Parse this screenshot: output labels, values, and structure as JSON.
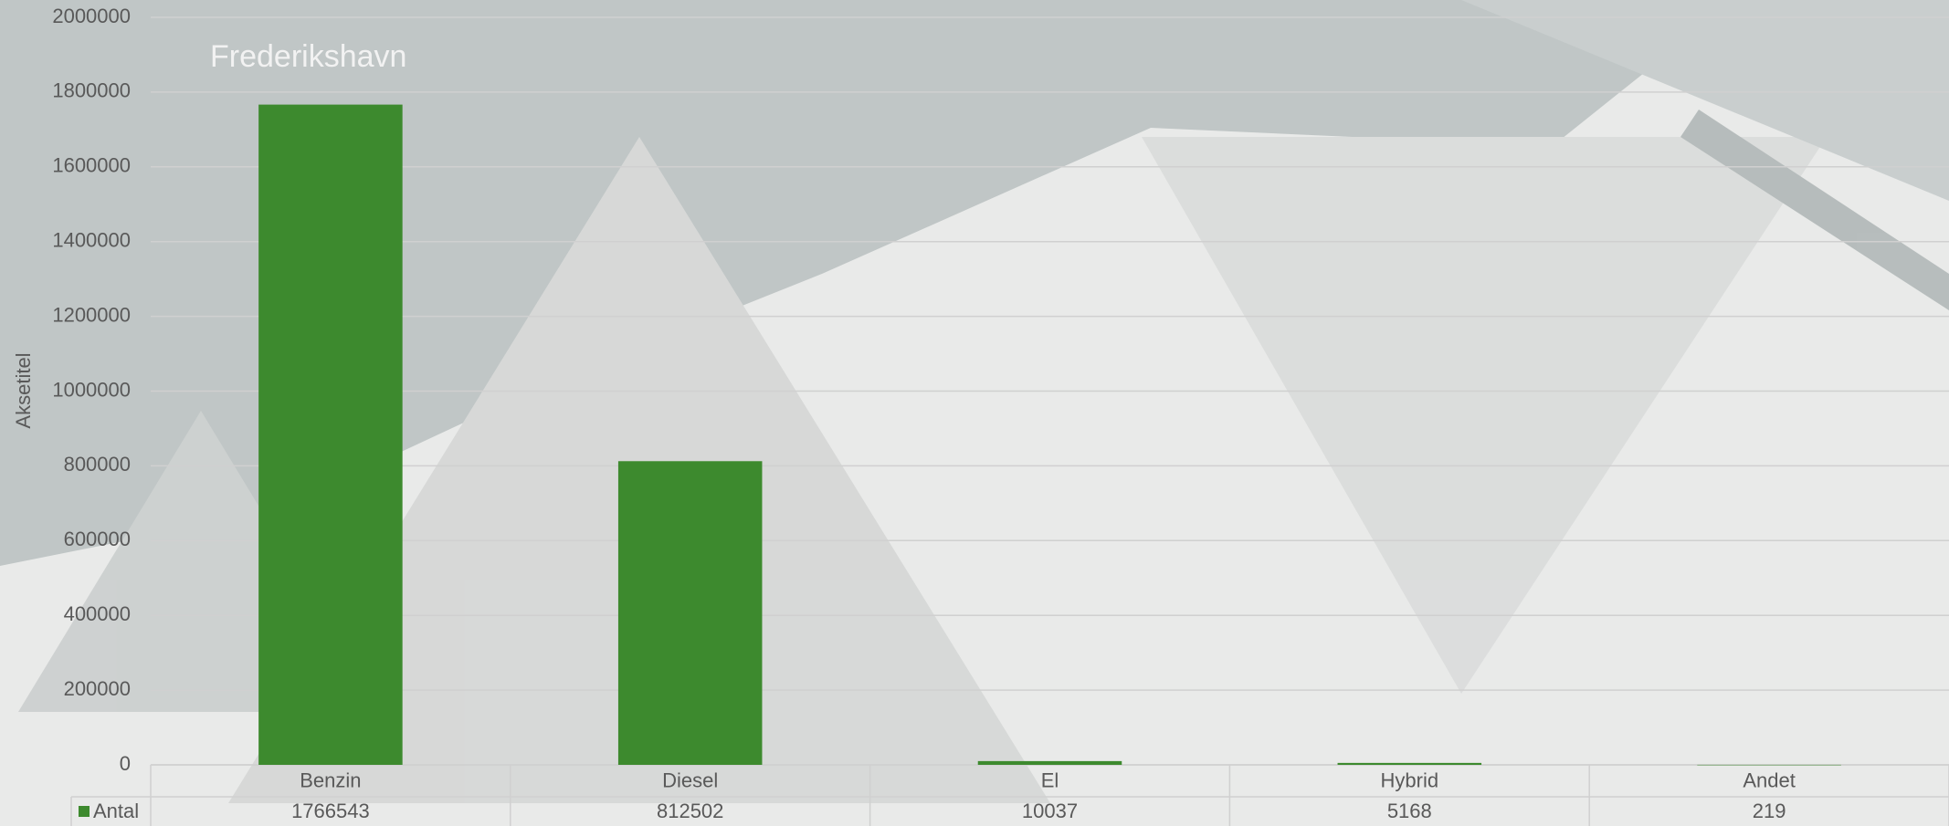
{
  "chart_data": {
    "type": "bar",
    "y_axis_label": "Aksetitel",
    "categories": [
      "Benzin",
      "Diesel",
      "El",
      "Hybrid",
      "Andet"
    ],
    "series": [
      {
        "name": "Antal",
        "color": "#3d8a2e",
        "values": [
          1766543,
          812502,
          10037,
          5168,
          219
        ]
      }
    ],
    "ylim": [
      0,
      2000000
    ],
    "yticks": [
      0,
      200000,
      400000,
      600000,
      800000,
      1000000,
      1200000,
      1400000,
      1600000,
      1800000,
      2000000
    ],
    "grid": true,
    "data_table": true
  }
}
